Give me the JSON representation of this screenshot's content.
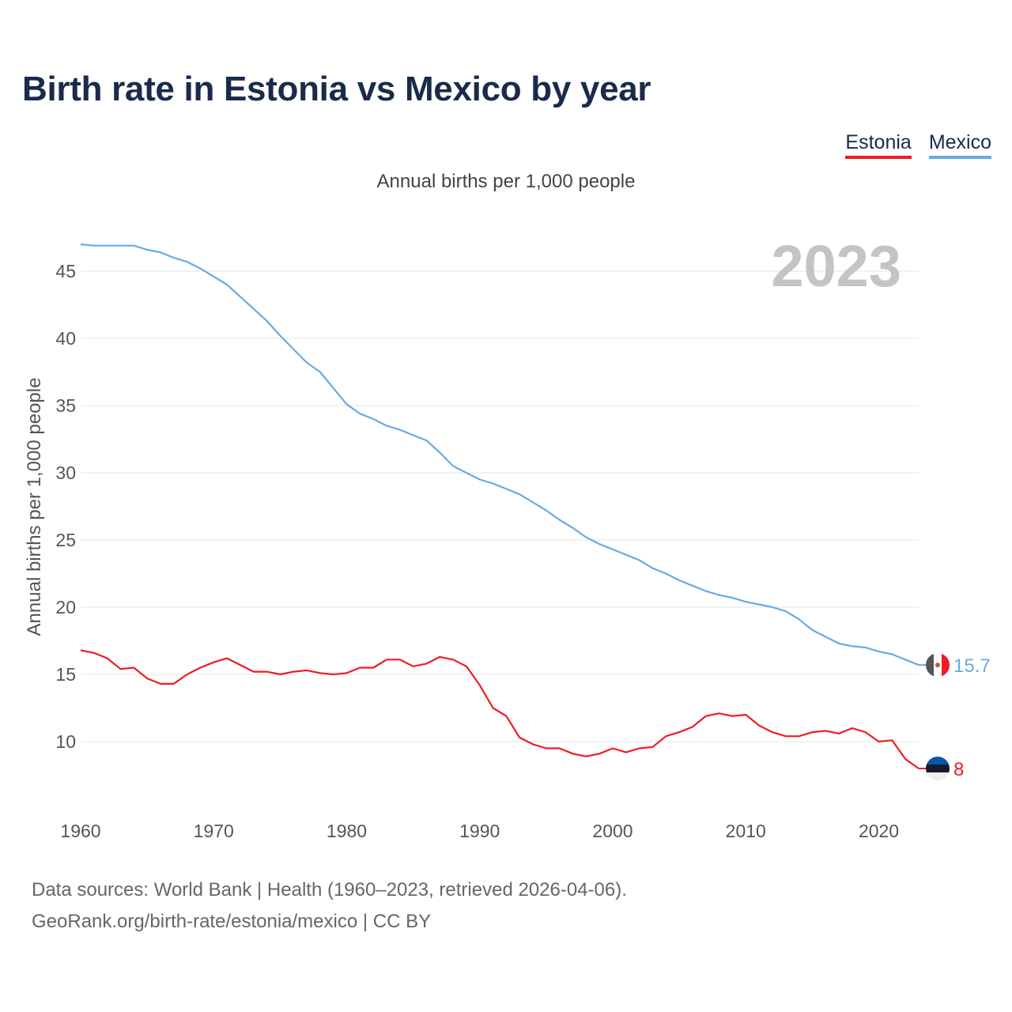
{
  "title": "Birth rate in Estonia vs Mexico by year",
  "subtitle": "Annual births per 1,000 people",
  "legend": [
    {
      "name": "Estonia",
      "color": "#ee1c25"
    },
    {
      "name": "Mexico",
      "color": "#6aaae4"
    }
  ],
  "year_label": "2023",
  "source_lines": [
    "Data sources: World Bank | Health (1960–2023, retrieved 2026-04-06).",
    "GeoRank.org/birth-rate/estonia/mexico | CC BY"
  ],
  "chart_data": {
    "type": "line",
    "title": "Birth rate in Estonia vs Mexico by year",
    "ylabel": "Annual births per 1,000 people",
    "xlabel": "",
    "xlim": [
      1960,
      2023
    ],
    "ylim": [
      6,
      48
    ],
    "x_ticks": [
      1960,
      1970,
      1980,
      1990,
      2000,
      2010,
      2020
    ],
    "y_ticks": [
      10,
      15,
      20,
      25,
      30,
      35,
      40,
      45
    ],
    "grid": true,
    "x": [
      1960,
      1961,
      1962,
      1963,
      1964,
      1965,
      1966,
      1967,
      1968,
      1969,
      1970,
      1971,
      1972,
      1973,
      1974,
      1975,
      1976,
      1977,
      1978,
      1979,
      1980,
      1981,
      1982,
      1983,
      1984,
      1985,
      1986,
      1987,
      1988,
      1989,
      1990,
      1991,
      1992,
      1993,
      1994,
      1995,
      1996,
      1997,
      1998,
      1999,
      2000,
      2001,
      2002,
      2003,
      2004,
      2005,
      2006,
      2007,
      2008,
      2009,
      2010,
      2011,
      2012,
      2013,
      2014,
      2015,
      2016,
      2017,
      2018,
      2019,
      2020,
      2021,
      2022,
      2023
    ],
    "series": [
      {
        "name": "Mexico",
        "color": "#6aaae4",
        "end_label": "15.7",
        "values": [
          47.0,
          46.9,
          46.9,
          46.9,
          46.9,
          46.6,
          46.4,
          46.0,
          45.7,
          45.2,
          44.6,
          44.0,
          43.1,
          42.2,
          41.3,
          40.2,
          39.2,
          38.2,
          37.5,
          36.3,
          35.1,
          34.4,
          34.0,
          33.5,
          33.2,
          32.8,
          32.4,
          31.5,
          30.5,
          30.0,
          29.5,
          29.2,
          28.8,
          28.4,
          27.8,
          27.2,
          26.5,
          25.9,
          25.2,
          24.7,
          24.3,
          23.9,
          23.5,
          22.9,
          22.5,
          22.0,
          21.6,
          21.2,
          20.9,
          20.7,
          20.4,
          20.2,
          20.0,
          19.7,
          19.1,
          18.3,
          17.8,
          17.3,
          17.1,
          17.0,
          16.7,
          16.5,
          16.1,
          15.7
        ]
      },
      {
        "name": "Estonia",
        "color": "#ee1c25",
        "end_label": "8",
        "values": [
          16.8,
          16.6,
          16.2,
          15.4,
          15.5,
          14.7,
          14.3,
          14.3,
          15.0,
          15.5,
          15.9,
          16.2,
          15.7,
          15.2,
          15.2,
          15.0,
          15.2,
          15.3,
          15.1,
          15.0,
          15.1,
          15.5,
          15.5,
          16.1,
          16.1,
          15.6,
          15.8,
          16.3,
          16.1,
          15.6,
          14.2,
          12.5,
          11.9,
          10.3,
          9.8,
          9.5,
          9.5,
          9.1,
          8.9,
          9.1,
          9.5,
          9.2,
          9.5,
          9.6,
          10.4,
          10.7,
          11.1,
          11.9,
          12.1,
          11.9,
          12.0,
          11.2,
          10.7,
          10.4,
          10.4,
          10.7,
          10.8,
          10.6,
          11.0,
          10.7,
          10.0,
          10.1,
          8.7,
          8.0
        ]
      }
    ]
  }
}
